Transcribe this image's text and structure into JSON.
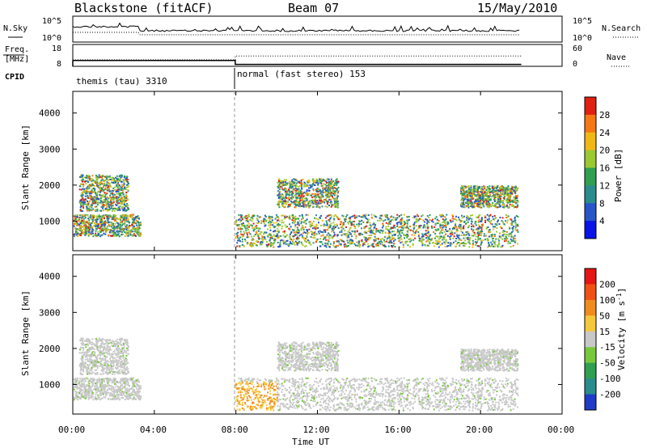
{
  "header": {
    "station": "Blackstone (fitACF)",
    "beam": "Beam 07",
    "date": "15/May/2010"
  },
  "chart_data": [
    {
      "type": "line",
      "panel": "noise",
      "left_label": "N.Sky",
      "right_label": "N.Search",
      "left_ticks": [
        "10^5",
        "10^0"
      ],
      "right_ticks": [
        "10^5",
        "10^0"
      ],
      "series": [
        {
          "name": "N.Sky",
          "style": "solid"
        },
        {
          "name": "N.Search",
          "style": "dotted"
        }
      ]
    },
    {
      "type": "line",
      "panel": "frequency",
      "left_label": [
        "Freq.",
        "[MHz]"
      ],
      "right_label": "Nave",
      "left_ticks": [
        18,
        8
      ],
      "right_ticks": [
        60,
        0
      ],
      "series": [
        {
          "name": "Freq.",
          "style": "solid",
          "x": [
            0.0,
            7.97,
            7.97,
            22.0
          ],
          "y": [
            11,
            11,
            9,
            9
          ]
        },
        {
          "name": "Nave",
          "style": "dotted",
          "x": [
            0.0,
            7.97,
            7.97,
            22.0
          ],
          "y": [
            20,
            20,
            32,
            32
          ]
        }
      ]
    },
    {
      "type": "table",
      "panel": "cpid",
      "label": "CPID",
      "segments": [
        {
          "name": "themis (tau) 3310",
          "start": 0.0,
          "end": 7.97
        },
        {
          "name": "normal (fast stereo) 153",
          "start": 7.97,
          "end": 22.0
        }
      ]
    },
    {
      "type": "heatmap",
      "panel": "power",
      "ylabel": "Slant Range [km]",
      "yticks": [
        1000,
        2000,
        3000,
        4000
      ],
      "ylim": [
        180,
        4600
      ],
      "colorbar_label": "Power [dB]",
      "colorbar_ticks": [
        4,
        8,
        12,
        16,
        20,
        24,
        28
      ],
      "colorbar_colors": [
        "#0a14e6",
        "#2855c8",
        "#2a8c8c",
        "#2ea050",
        "#9cc832",
        "#f0b814",
        "#f57814",
        "#e02010"
      ],
      "scatter_regions": [
        {
          "t0": 0.0,
          "t1": 3.3,
          "r0": 600,
          "r1": 1200
        },
        {
          "t0": 0.3,
          "t1": 2.7,
          "r0": 1300,
          "r1": 2300
        },
        {
          "t0": 7.95,
          "t1": 21.8,
          "r0": 300,
          "r1": 1200
        },
        {
          "t0": 10.0,
          "t1": 13.0,
          "r0": 1400,
          "r1": 2200
        },
        {
          "t0": 19.0,
          "t1": 21.8,
          "r0": 1400,
          "r1": 2000
        }
      ]
    },
    {
      "type": "heatmap",
      "panel": "velocity",
      "ylabel": "Slant Range [km]",
      "yticks": [
        1000,
        2000,
        3000,
        4000
      ],
      "ylim": [
        180,
        4600
      ],
      "colorbar_label": "Velocity [m s^-1]",
      "colorbar_ticks": [
        200,
        100,
        50,
        15,
        -15,
        -50,
        -100,
        -200
      ],
      "colorbar_colors": [
        "#1e3cc8",
        "#2a8c8c",
        "#2ea050",
        "#78c83c",
        "#c8c8c8",
        "#f5c83c",
        "#f08c1e",
        "#f05014",
        "#e61414"
      ],
      "x_ticks": [
        "00:00",
        "04:00",
        "08:00",
        "12:00",
        "16:00",
        "20:00",
        "00:00"
      ],
      "xlabel": "Time UT",
      "xlim": [
        0,
        24
      ]
    }
  ]
}
